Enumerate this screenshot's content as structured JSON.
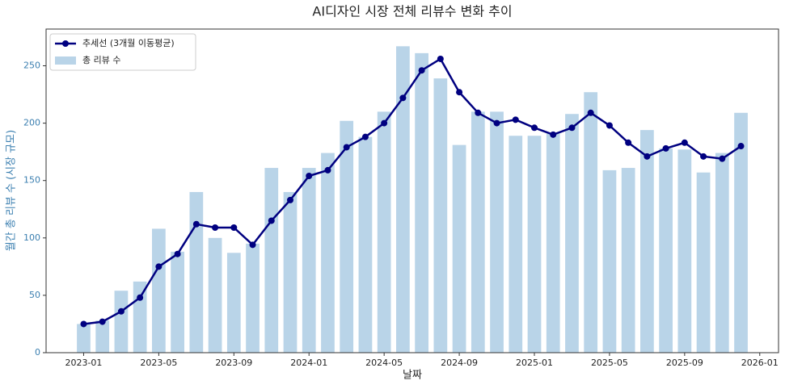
{
  "chart_data": {
    "type": "bar",
    "title": "AI디자인 시장 전체 리뷰수 변화 추이",
    "x_label": "날짜",
    "y_label": "월간 총 리뷰 수 (시장 규모)",
    "x": [
      "2023-01",
      "2023-02",
      "2023-03",
      "2023-04",
      "2023-05",
      "2023-06",
      "2023-07",
      "2023-08",
      "2023-09",
      "2023-10",
      "2023-11",
      "2023-12",
      "2024-01",
      "2024-02",
      "2024-03",
      "2024-04",
      "2024-05",
      "2024-06",
      "2024-07",
      "2024-08",
      "2024-09",
      "2024-10",
      "2024-11",
      "2024-12",
      "2025-01",
      "2025-02",
      "2025-03",
      "2025-04",
      "2025-05",
      "2025-06",
      "2025-07",
      "2025-08",
      "2025-09",
      "2025-10",
      "2025-11",
      "2025-12"
    ],
    "series": [
      {
        "name": "추세선 (3개월 이동평균)",
        "type": "line",
        "color": "#000080",
        "values": [
          25,
          27,
          36,
          48,
          75,
          86,
          112,
          109,
          109,
          94,
          115,
          133,
          154,
          159,
          179,
          188,
          200,
          222,
          246,
          256,
          227,
          209,
          200,
          203,
          196,
          190,
          196,
          209,
          198,
          183,
          171,
          178,
          183,
          171,
          169,
          180
        ]
      },
      {
        "name": "총 리뷰 수",
        "type": "bar",
        "color": "#b9d4e8",
        "values": [
          25,
          28,
          54,
          62,
          108,
          88,
          140,
          100,
          87,
          95,
          161,
          140,
          161,
          174,
          202,
          188,
          210,
          267,
          261,
          239,
          181,
          210,
          210,
          189,
          189,
          191,
          208,
          227,
          159,
          161,
          194,
          178,
          177,
          157,
          174,
          209
        ]
      }
    ],
    "xlim": [
      "2022-11",
      "2026-02"
    ],
    "xticks": [
      "2023-01",
      "2023-05",
      "2023-09",
      "2024-01",
      "2024-05",
      "2024-09",
      "2025-01",
      "2025-05",
      "2025-09",
      "2026-01"
    ],
    "ylim": [
      0,
      282
    ],
    "yticks": [
      0,
      50,
      100,
      150,
      200,
      250
    ],
    "y_axis_color": "#3b7fb0",
    "grid": false,
    "legend": "upper-left"
  }
}
